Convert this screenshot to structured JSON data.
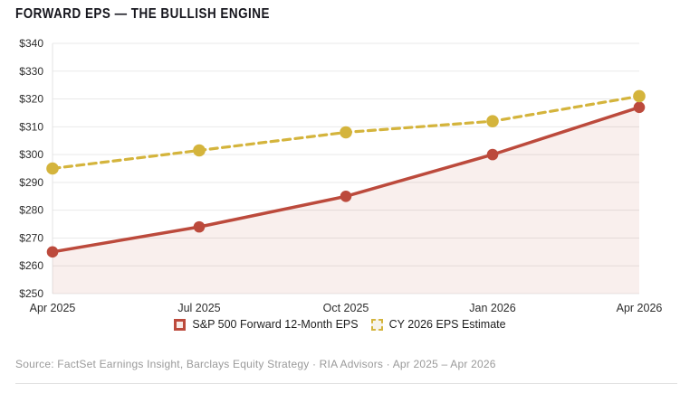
{
  "title": "FORWARD EPS — THE BULLISH ENGINE",
  "source_note": "Source: FactSet Earnings Insight, Barclays Equity Strategy · RIA Advisors · Apr 2025 – Apr 2026",
  "colors": {
    "title_text": "#15151c",
    "accent_red": "#bc4a3c",
    "accent_yellow": "#d4b43c",
    "red_area_fill_opacity": 0.09,
    "legend_solid_marker_fill": "#f8eae6",
    "legend_dashed_marker_fill": "#f6f3eb",
    "gridline": "#e9e9e9",
    "axis_line": "#e3e3e3",
    "tick_label_text": "#2d2d2d",
    "source_text": "#9a9a9a"
  },
  "chart_data": {
    "type": "line",
    "categories": [
      "Apr 2025",
      "Jul 2025",
      "Oct 2025",
      "Jan 2026",
      "Apr 2026"
    ],
    "series": [
      {
        "name": "S&P 500 Forward 12-Month EPS",
        "values": [
          265,
          274,
          285,
          300,
          317
        ],
        "color": "#bc4a3c",
        "style": "solid",
        "marker": "circle",
        "marker_radius": 6.3,
        "line_width": 3.5,
        "area_fill": true
      },
      {
        "name": "CY 2026 EPS Estimate",
        "values": [
          295,
          301.5,
          308,
          312,
          321
        ],
        "color": "#d4b43c",
        "style": "dashed",
        "marker": "circle",
        "marker_radius": 6.8,
        "line_width": 3.2,
        "area_fill": false
      }
    ],
    "title": "FORWARD EPS — THE BULLISH ENGINE",
    "xlabel": "",
    "ylabel": "",
    "ylim": [
      250,
      340
    ],
    "ytick_step": 10,
    "ytick_prefix": "$",
    "grid": true,
    "legend_position": "bottom"
  }
}
